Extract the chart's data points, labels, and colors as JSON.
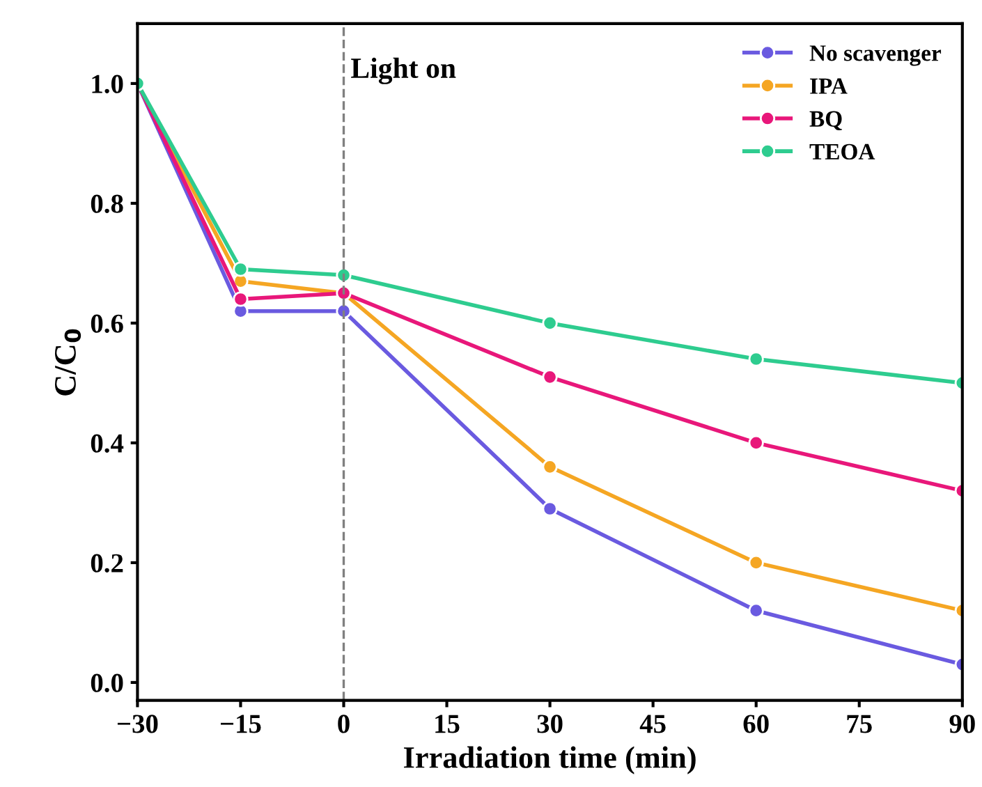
{
  "chart_data": {
    "type": "line",
    "xlabel": "Irradiation time (min)",
    "ylabel": "C/C$_{0}$",
    "x": [
      -30,
      -15,
      0,
      30,
      60,
      90
    ],
    "series": [
      {
        "name": "No scavenger",
        "color": "#6a5ae0",
        "values": [
          1.0,
          0.62,
          0.62,
          0.29,
          0.12,
          0.03
        ]
      },
      {
        "name": "IPA",
        "color": "#f5a623",
        "values": [
          1.0,
          0.67,
          0.65,
          0.36,
          0.2,
          0.12
        ]
      },
      {
        "name": "BQ",
        "color": "#e8177a",
        "values": [
          1.0,
          0.64,
          0.65,
          0.51,
          0.4,
          0.32
        ]
      },
      {
        "name": "TEOA",
        "color": "#2ecc8f",
        "values": [
          1.0,
          0.69,
          0.68,
          0.6,
          0.54,
          0.5
        ]
      }
    ],
    "xlim": [
      -30,
      90
    ],
    "ylim": [
      -0.03,
      1.1
    ],
    "xticks": [
      {
        "value": -30,
        "label": "−30"
      },
      {
        "value": -15,
        "label": "−15"
      },
      0,
      15,
      30,
      45,
      60,
      75,
      90
    ],
    "yticks": [
      {
        "value": 0,
        "label": "0.0"
      },
      {
        "value": 0.2,
        "label": "0.2"
      },
      {
        "value": 0.4,
        "label": "0.4"
      },
      {
        "value": 0.6,
        "label": "0.6"
      },
      {
        "value": 0.8,
        "label": "0.8"
      },
      {
        "value": 1,
        "label": "1.0"
      }
    ],
    "ref_lines": [
      {
        "axis": "x",
        "value": 0,
        "label": "Light on",
        "color": "#808080",
        "line_style": "dashed"
      }
    ],
    "marker": "circle",
    "line_style": "solid",
    "grid": false,
    "legend": "top right"
  }
}
